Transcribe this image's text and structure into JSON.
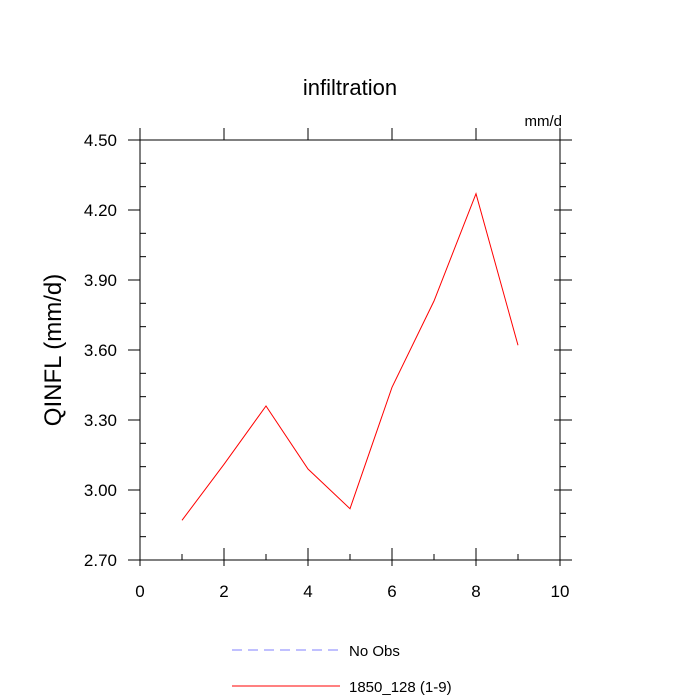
{
  "chart_data": {
    "type": "line",
    "title": "infiltration",
    "units": "mm/d",
    "ylabel": "QINFL  (mm/d)",
    "xlabel": "",
    "xlim": [
      0,
      10
    ],
    "ylim": [
      2.7,
      4.5
    ],
    "x_ticks": [
      0,
      2,
      4,
      6,
      8,
      10
    ],
    "x_tick_labels": [
      "0",
      "2",
      "4",
      "6",
      "8",
      "10"
    ],
    "y_ticks": [
      2.7,
      3.0,
      3.3,
      3.6,
      3.9,
      4.2,
      4.5
    ],
    "y_tick_labels": [
      "2.70",
      "3.00",
      "3.30",
      "3.60",
      "3.90",
      "4.20",
      "4.50"
    ],
    "grid": false,
    "legend_position": "bottom",
    "series": [
      {
        "name": "No Obs",
        "color": "#8080ff",
        "style": "dashed",
        "x": [],
        "values": []
      },
      {
        "name": "1850_128 (1-9)",
        "color": "#ff0000",
        "style": "solid",
        "x": [
          1,
          2,
          3,
          4,
          5,
          6,
          7,
          8,
          9
        ],
        "values": [
          2.87,
          3.11,
          3.36,
          3.09,
          2.92,
          3.44,
          3.81,
          4.27,
          3.62
        ]
      }
    ]
  }
}
